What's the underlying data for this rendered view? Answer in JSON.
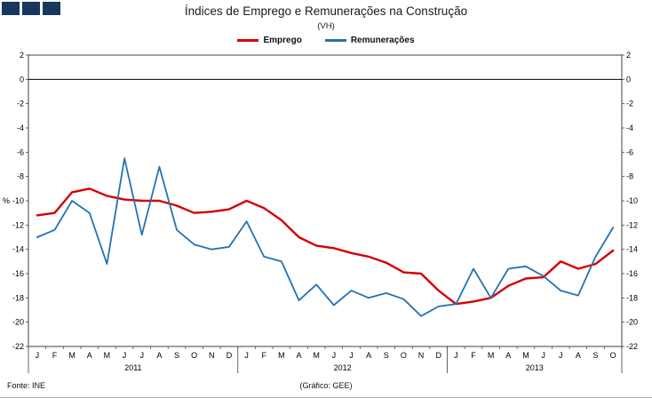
{
  "logo": {
    "square_count": 3,
    "color": "#17375e"
  },
  "chart_data": {
    "type": "line",
    "title": "Índices de Emprego e Remunerações na Construção",
    "subtitle": "(VH)",
    "percent_label": "%",
    "ylim": [
      2,
      -22
    ],
    "ytick_step": 2,
    "grid": "zero-line-only",
    "legend_position": "top-center",
    "axis_color": "#404040",
    "month_letters": [
      "J",
      "F",
      "M",
      "A",
      "M",
      "J",
      "J",
      "A",
      "S",
      "O",
      "N",
      "D",
      "J",
      "F",
      "M",
      "A",
      "M",
      "J",
      "J",
      "A",
      "S",
      "O",
      "N",
      "D",
      "J",
      "F",
      "M",
      "A",
      "M",
      "J",
      "J",
      "A",
      "S",
      "O"
    ],
    "years": [
      {
        "label": "2011",
        "months": 12
      },
      {
        "label": "2012",
        "months": 12
      },
      {
        "label": "2013",
        "months": 10
      }
    ],
    "series": [
      {
        "name": "Emprego",
        "color": "#d40000",
        "width": 2.4,
        "values": [
          -11.2,
          -11.0,
          -9.3,
          -9.0,
          -9.6,
          -9.9,
          -10.0,
          -10.0,
          -10.4,
          -11.0,
          -10.9,
          -10.7,
          -10.0,
          -10.6,
          -11.6,
          -13.0,
          -13.7,
          -13.9,
          -14.3,
          -14.6,
          -15.1,
          -15.9,
          -16.0,
          -17.4,
          -18.5,
          -18.3,
          -18.0,
          -17.0,
          -16.4,
          -16.3,
          -15.0,
          -15.6,
          -15.2,
          -14.1
        ]
      },
      {
        "name": "Remunerações",
        "color": "#2372b5",
        "width": 1.8,
        "values": [
          -13.0,
          -12.4,
          -10.0,
          -11.0,
          -15.2,
          -6.5,
          -12.8,
          -7.2,
          -12.4,
          -13.6,
          -14.0,
          -13.8,
          -11.7,
          -14.6,
          -15.0,
          -18.2,
          -16.9,
          -18.6,
          -17.4,
          -18.0,
          -17.6,
          -18.1,
          -19.5,
          -18.7,
          -18.5,
          -15.6,
          -18.0,
          -15.6,
          -15.4,
          -16.2,
          -17.4,
          -17.8,
          -14.6,
          -12.2
        ]
      }
    ]
  },
  "footer": {
    "source": "Fonte: INE",
    "credit": "(Gráfico: GEE)"
  }
}
